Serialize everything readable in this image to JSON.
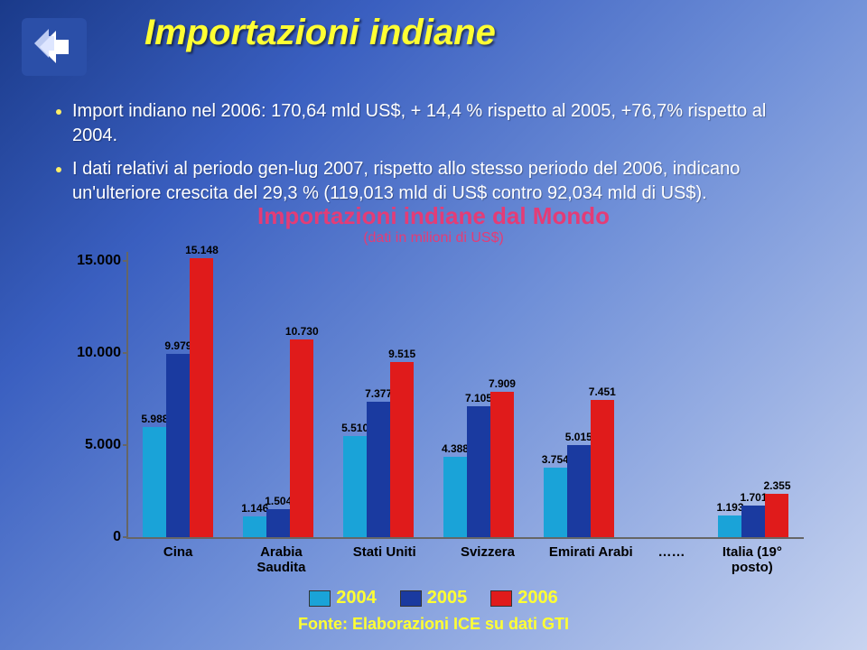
{
  "title": "Importazioni indiane",
  "bullets": [
    "Import indiano nel 2006: 170,64 mld US$, + 14,4 % rispetto al 2005, +76,7% rispetto al 2004.",
    "I dati relativi al periodo gen-lug 2007, rispetto allo stesso periodo del 2006, indicano un'ulteriore crescita del 29,3 % (119,013 mld di US$ contro 92,034 mld di US$)."
  ],
  "chart": {
    "title": "Importazioni indiane dal Mondo",
    "subtitle": "(dati in milioni di US$)",
    "ymax": 15500,
    "yticks": [
      {
        "v": 0,
        "label": "0"
      },
      {
        "v": 5000,
        "label": "5.000"
      },
      {
        "v": 10000,
        "label": "10.000"
      },
      {
        "v": 15000,
        "label": "15.000"
      }
    ],
    "series_colors": {
      "2004": "#1aa3d8",
      "2005": "#1a3aa0",
      "2006": "#e01b1b"
    },
    "legend": [
      {
        "label": "2004",
        "key": "2004"
      },
      {
        "label": "2005",
        "key": "2005"
      },
      {
        "label": "2006",
        "key": "2006"
      }
    ],
    "groups": [
      {
        "name": "Cina",
        "values": {
          "2004": "5.988",
          "2005": "9.979",
          "2006": "15.148"
        },
        "n": {
          "2004": 5988,
          "2005": 9979,
          "2006": 15148
        }
      },
      {
        "name": "Arabia Saudita",
        "values": {
          "2004": "1.146",
          "2005": "1.504",
          "2006": "10.730"
        },
        "n": {
          "2004": 1146,
          "2005": 1504,
          "2006": 10730
        }
      },
      {
        "name": "Stati Uniti",
        "values": {
          "2004": "5.510",
          "2005": "7.377",
          "2006": "9.515"
        },
        "n": {
          "2004": 5510,
          "2005": 7377,
          "2006": 9515
        }
      },
      {
        "name": "Svizzera",
        "values": {
          "2004": "4.388",
          "2005": "7.105",
          "2006": "7.909"
        },
        "n": {
          "2004": 4388,
          "2005": 7105,
          "2006": 7909
        }
      },
      {
        "name": "Emirati Arabi",
        "values": {
          "2004": "3.754",
          "2005": "5.015",
          "2006": "7.451"
        },
        "n": {
          "2004": 3754,
          "2005": 5015,
          "2006": 7451
        }
      },
      {
        "name": "……",
        "gap": true
      },
      {
        "name": "Italia (19° posto)",
        "values": {
          "2004": "1.193",
          "2005": "1.701",
          "2006": "2.355"
        },
        "n": {
          "2004": 1193,
          "2005": 1701,
          "2006": 2355
        }
      }
    ]
  },
  "footer": "Fonte: Elaborazioni ICE su dati GTI"
}
